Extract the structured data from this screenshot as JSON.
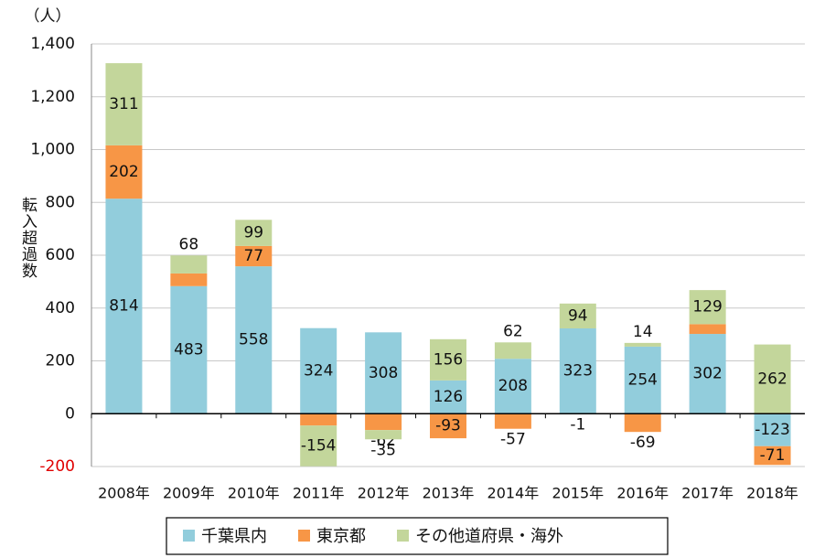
{
  "chart_data": {
    "type": "bar",
    "stacked": true,
    "y_unit": "（人）",
    "y_label": "転入超過数",
    "categories": [
      "2008年",
      "2009年",
      "2010年",
      "2011年",
      "2012年",
      "2013年",
      "2014年",
      "2015年",
      "2016年",
      "2017年",
      "2018年"
    ],
    "series": [
      {
        "name": "千葉県内",
        "color": "#92cddc",
        "values": [
          814,
          483,
          558,
          324,
          308,
          126,
          208,
          323,
          254,
          302,
          -123
        ]
      },
      {
        "name": "東京都",
        "color": "#f79646",
        "values": [
          202,
          48,
          77,
          -45,
          -62,
          -93,
          -57,
          -1,
          -69,
          37,
          -71
        ]
      },
      {
        "name": "その他道府県・海外",
        "color": "#c3d69b",
        "values": [
          311,
          68,
          99,
          -154,
          -35,
          156,
          62,
          94,
          14,
          129,
          262
        ]
      }
    ],
    "ylim": [
      -200,
      1400
    ],
    "yticks": [
      -200,
      0,
      200,
      400,
      600,
      800,
      {
        "value": 1000,
        "label": "1,000"
      },
      {
        "value": 1200,
        "label": "1,200"
      },
      {
        "value": 1400,
        "label": "1,400"
      }
    ],
    "grid": true,
    "legend": "bottom"
  }
}
